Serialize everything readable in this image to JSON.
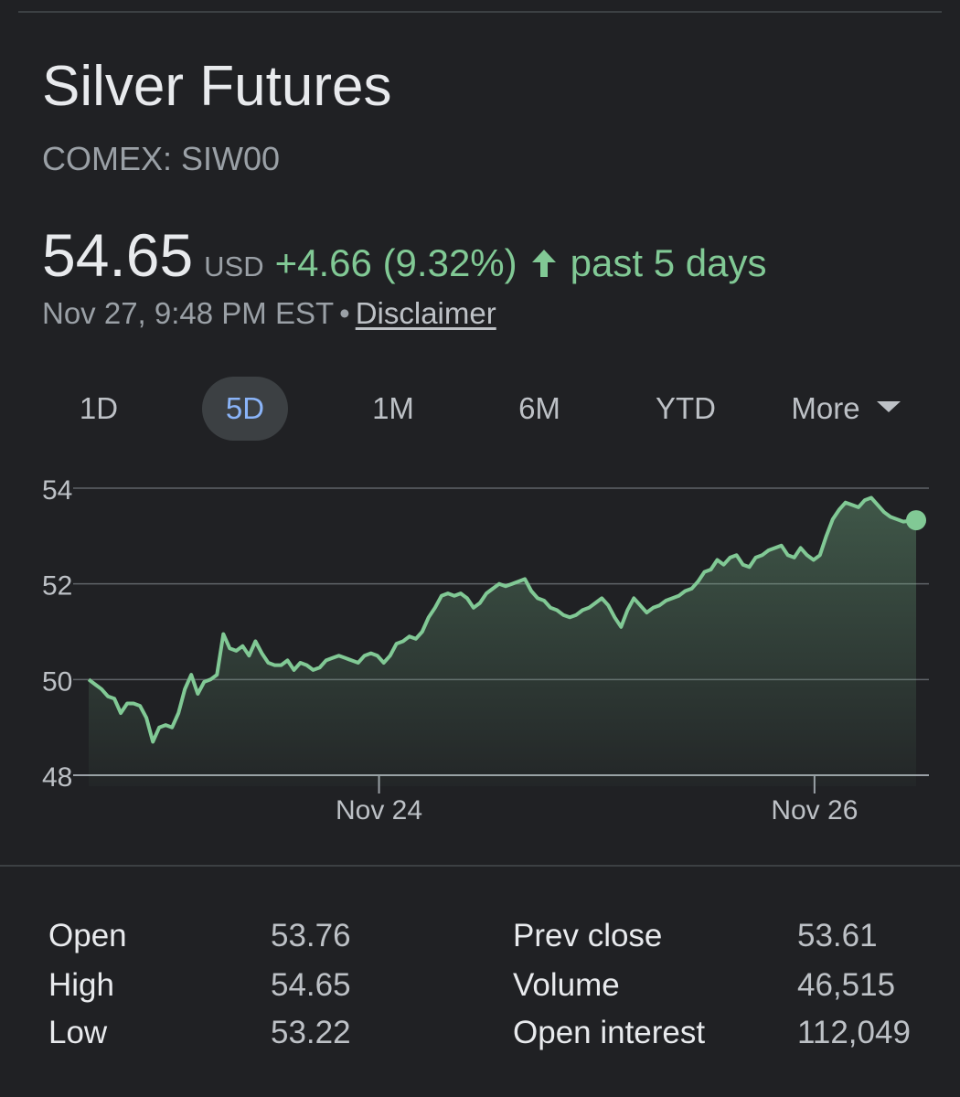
{
  "header": {
    "title": "Silver Futures",
    "ticker": "COMEX: SIW00"
  },
  "quote": {
    "price": "54.65",
    "currency": "USD",
    "change": "+4.66 (9.32%)",
    "period": "past 5 days",
    "timestamp": "Nov 27, 9:48 PM EST",
    "separator": "•",
    "disclaimer": "Disclaimer"
  },
  "ranges": {
    "items": [
      "1D",
      "5D",
      "1M",
      "6M",
      "YTD",
      "More"
    ],
    "selected": "5D"
  },
  "colors": {
    "background": "#202124",
    "accent_green": "#81c995",
    "selected_text": "#8ab4f8",
    "grid": "#5f6368"
  },
  "chart_data": {
    "type": "area",
    "y_ticks": [
      "54",
      "52",
      "50",
      "48"
    ],
    "x_ticks": [
      "Nov 24",
      "Nov 26"
    ],
    "ylim": [
      48,
      54.25
    ],
    "x_tick_positions": [
      2.0,
      5.0
    ],
    "xlim": [
      0,
      5.7
    ],
    "grid": true,
    "series": [
      {
        "values": [
          50.0,
          49.9,
          49.8,
          49.65,
          49.6,
          49.3,
          49.5,
          49.5,
          49.45,
          49.2,
          48.7,
          49.0,
          49.05,
          49.0,
          49.3,
          49.8,
          50.1,
          49.7,
          49.95,
          50.0,
          50.1,
          50.95,
          50.65,
          50.6,
          50.7,
          50.5,
          50.8,
          50.55,
          50.35,
          50.3,
          50.3,
          50.4,
          50.2,
          50.35,
          50.3,
          50.2,
          50.25,
          50.4,
          50.45,
          50.5,
          50.45,
          50.4,
          50.35,
          50.5,
          50.55,
          50.5,
          50.35,
          50.5,
          50.75,
          50.8,
          50.9,
          50.85,
          51.0,
          51.3,
          51.5,
          51.75,
          51.8,
          51.75,
          51.8,
          51.7,
          51.5,
          51.6,
          51.8,
          51.9,
          52.0,
          51.95,
          52.0,
          52.05,
          52.1,
          51.85,
          51.7,
          51.65,
          51.5,
          51.45,
          51.35,
          51.3,
          51.35,
          51.45,
          51.5,
          51.6,
          51.7,
          51.55,
          51.3,
          51.1,
          51.45,
          51.7,
          51.55,
          51.4,
          51.5,
          51.55,
          51.65,
          51.7,
          51.75,
          51.85,
          51.9,
          52.05,
          52.25,
          52.3,
          52.5,
          52.4,
          52.55,
          52.6,
          52.4,
          52.35,
          52.55,
          52.6,
          52.7,
          52.75,
          52.8,
          52.6,
          52.55,
          52.75,
          52.6,
          52.5,
          52.6,
          53.0,
          53.35,
          53.55,
          53.7,
          53.65,
          53.6,
          53.75,
          53.8,
          53.65,
          53.5,
          53.4,
          53.35,
          53.3,
          53.32,
          53.33
        ]
      }
    ],
    "last_value": 53.33
  },
  "stats": {
    "left": [
      {
        "label": "Open",
        "value": "53.76"
      },
      {
        "label": "High",
        "value": "54.65"
      },
      {
        "label": "Low",
        "value": "53.22"
      }
    ],
    "right": [
      {
        "label": "Prev close",
        "value": "53.61"
      },
      {
        "label": "Volume",
        "value": "46,515"
      },
      {
        "label": "Open interest",
        "value": "112,049"
      }
    ]
  }
}
